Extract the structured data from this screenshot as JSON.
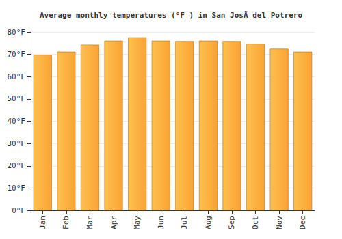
{
  "chart_data": {
    "type": "bar",
    "title": "Average monthly temperatures (°F ) in San JosÃ del Potrero",
    "categories": [
      "Jan",
      "Feb",
      "Mar",
      "Apr",
      "May",
      "Jun",
      "Jul",
      "Aug",
      "Sep",
      "Oct",
      "Nov",
      "Dec"
    ],
    "values": [
      69.8,
      71.2,
      74.3,
      76.1,
      77.6,
      76.1,
      75.9,
      76.1,
      75.9,
      74.7,
      72.5,
      71.2
    ],
    "color": "#fba333",
    "ylim": [
      0,
      80
    ],
    "yticks": [
      {
        "value": 0,
        "label": "0°F"
      },
      {
        "value": 10,
        "label": "10°F"
      },
      {
        "value": 20,
        "label": "20°F"
      },
      {
        "value": 30,
        "label": "30°F"
      },
      {
        "value": 40,
        "label": "40°F"
      },
      {
        "value": 50,
        "label": "50°F"
      },
      {
        "value": 60,
        "label": "60°F"
      },
      {
        "value": 70,
        "label": "70°F"
      },
      {
        "value": 80,
        "label": "80°F"
      }
    ],
    "grid": true
  }
}
